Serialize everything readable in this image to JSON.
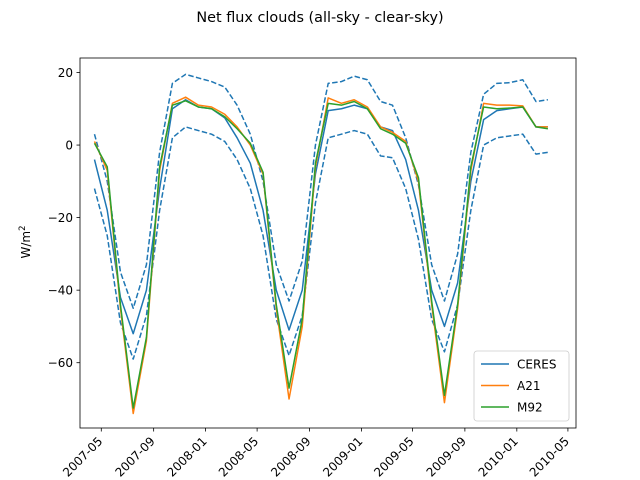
{
  "chart_data": {
    "type": "line",
    "title": "Net flux clouds (all-sky - clear-sky)",
    "ylabel_base": "W/m",
    "ylabel_sup": "2",
    "xlabel": "",
    "ylim": [
      -78,
      24
    ],
    "xlim": [
      "2007-03-12",
      "2010-05-20"
    ],
    "yticks": [
      20,
      0,
      -20,
      -40,
      -60
    ],
    "xticks": [
      "2007-05",
      "2007-09",
      "2008-01",
      "2008-05",
      "2008-09",
      "2009-01",
      "2009-05",
      "2009-09",
      "2010-01",
      "2010-05"
    ],
    "x": [
      "2007-04-15",
      "2007-05-15",
      "2007-06-15",
      "2007-07-15",
      "2007-08-15",
      "2007-09-15",
      "2007-10-15",
      "2007-11-15",
      "2007-12-15",
      "2008-01-15",
      "2008-02-15",
      "2008-03-15",
      "2008-04-15",
      "2008-05-15",
      "2008-06-15",
      "2008-07-15",
      "2008-08-15",
      "2008-09-15",
      "2008-10-15",
      "2008-11-15",
      "2008-12-15",
      "2009-01-15",
      "2009-02-15",
      "2009-03-15",
      "2009-04-15",
      "2009-05-15",
      "2009-06-15",
      "2009-07-15",
      "2009-08-15",
      "2009-09-15",
      "2009-10-15",
      "2009-11-15",
      "2009-12-15",
      "2010-01-15",
      "2010-02-15",
      "2010-03-15"
    ],
    "series": [
      {
        "name": "CERES",
        "color": "#1f77b4",
        "style": "solid",
        "values": [
          -4,
          -18,
          -42,
          -52,
          -40,
          -12,
          10,
          12.5,
          10.5,
          10,
          7.5,
          2,
          -5,
          -18,
          -40,
          -51,
          -40,
          -8,
          9.5,
          10,
          11,
          10,
          5,
          4,
          -4,
          -18,
          -40,
          -50,
          -38,
          -10,
          7,
          9.5,
          10,
          10.5,
          5,
          5
        ]
      },
      {
        "name": "",
        "color": "#1f77b4",
        "style": "dashed",
        "values": [
          3,
          -10,
          -35,
          -45,
          -33,
          -2,
          17,
          19.5,
          18.5,
          17.5,
          16,
          11,
          3,
          -10,
          -33,
          -43,
          -32,
          0,
          17,
          17.5,
          19,
          18,
          12,
          11,
          2,
          -11,
          -33,
          -43,
          -30,
          -2,
          14,
          17,
          17.2,
          18,
          12,
          12.5
        ]
      },
      {
        "name": "",
        "color": "#1f77b4",
        "style": "dashed",
        "values": [
          -12,
          -25,
          -49,
          -59,
          -47,
          -18,
          2,
          5,
          4,
          3,
          1,
          -4,
          -12,
          -25,
          -48,
          -58,
          -47,
          -16,
          2,
          3,
          4,
          3,
          -3,
          -3.5,
          -12,
          -26,
          -48,
          -57,
          -44,
          -18,
          0,
          2,
          2.5,
          3,
          -2.5,
          -2
        ]
      },
      {
        "name": "A21",
        "color": "#ff7f0e",
        "style": "solid",
        "values": [
          1,
          -7,
          -45,
          -74,
          -54,
          -7,
          11.5,
          13.2,
          11,
          10.5,
          8.5,
          5,
          0,
          -8,
          -45,
          -70,
          -50,
          -6,
          13,
          11.5,
          12.5,
          10.5,
          5,
          3.5,
          1,
          -10,
          -44,
          -71,
          -45,
          -7,
          11.5,
          11,
          11,
          10.8,
          5,
          5
        ]
      },
      {
        "name": "M92",
        "color": "#2ca02c",
        "style": "solid",
        "values": [
          0.5,
          -6,
          -44,
          -72.5,
          -53,
          -6,
          11,
          12.2,
          10.5,
          10,
          7.8,
          4.5,
          0.5,
          -7.5,
          -44,
          -67,
          -48,
          -5,
          11.5,
          11,
          12,
          10,
          4.5,
          3,
          0.5,
          -9,
          -43,
          -69,
          -44,
          -6,
          10.5,
          10,
          10.2,
          10.5,
          5,
          4.5
        ]
      }
    ],
    "legend": [
      "CERES",
      "A21",
      "M92"
    ],
    "legend_position": "lower-right",
    "grid": false
  }
}
